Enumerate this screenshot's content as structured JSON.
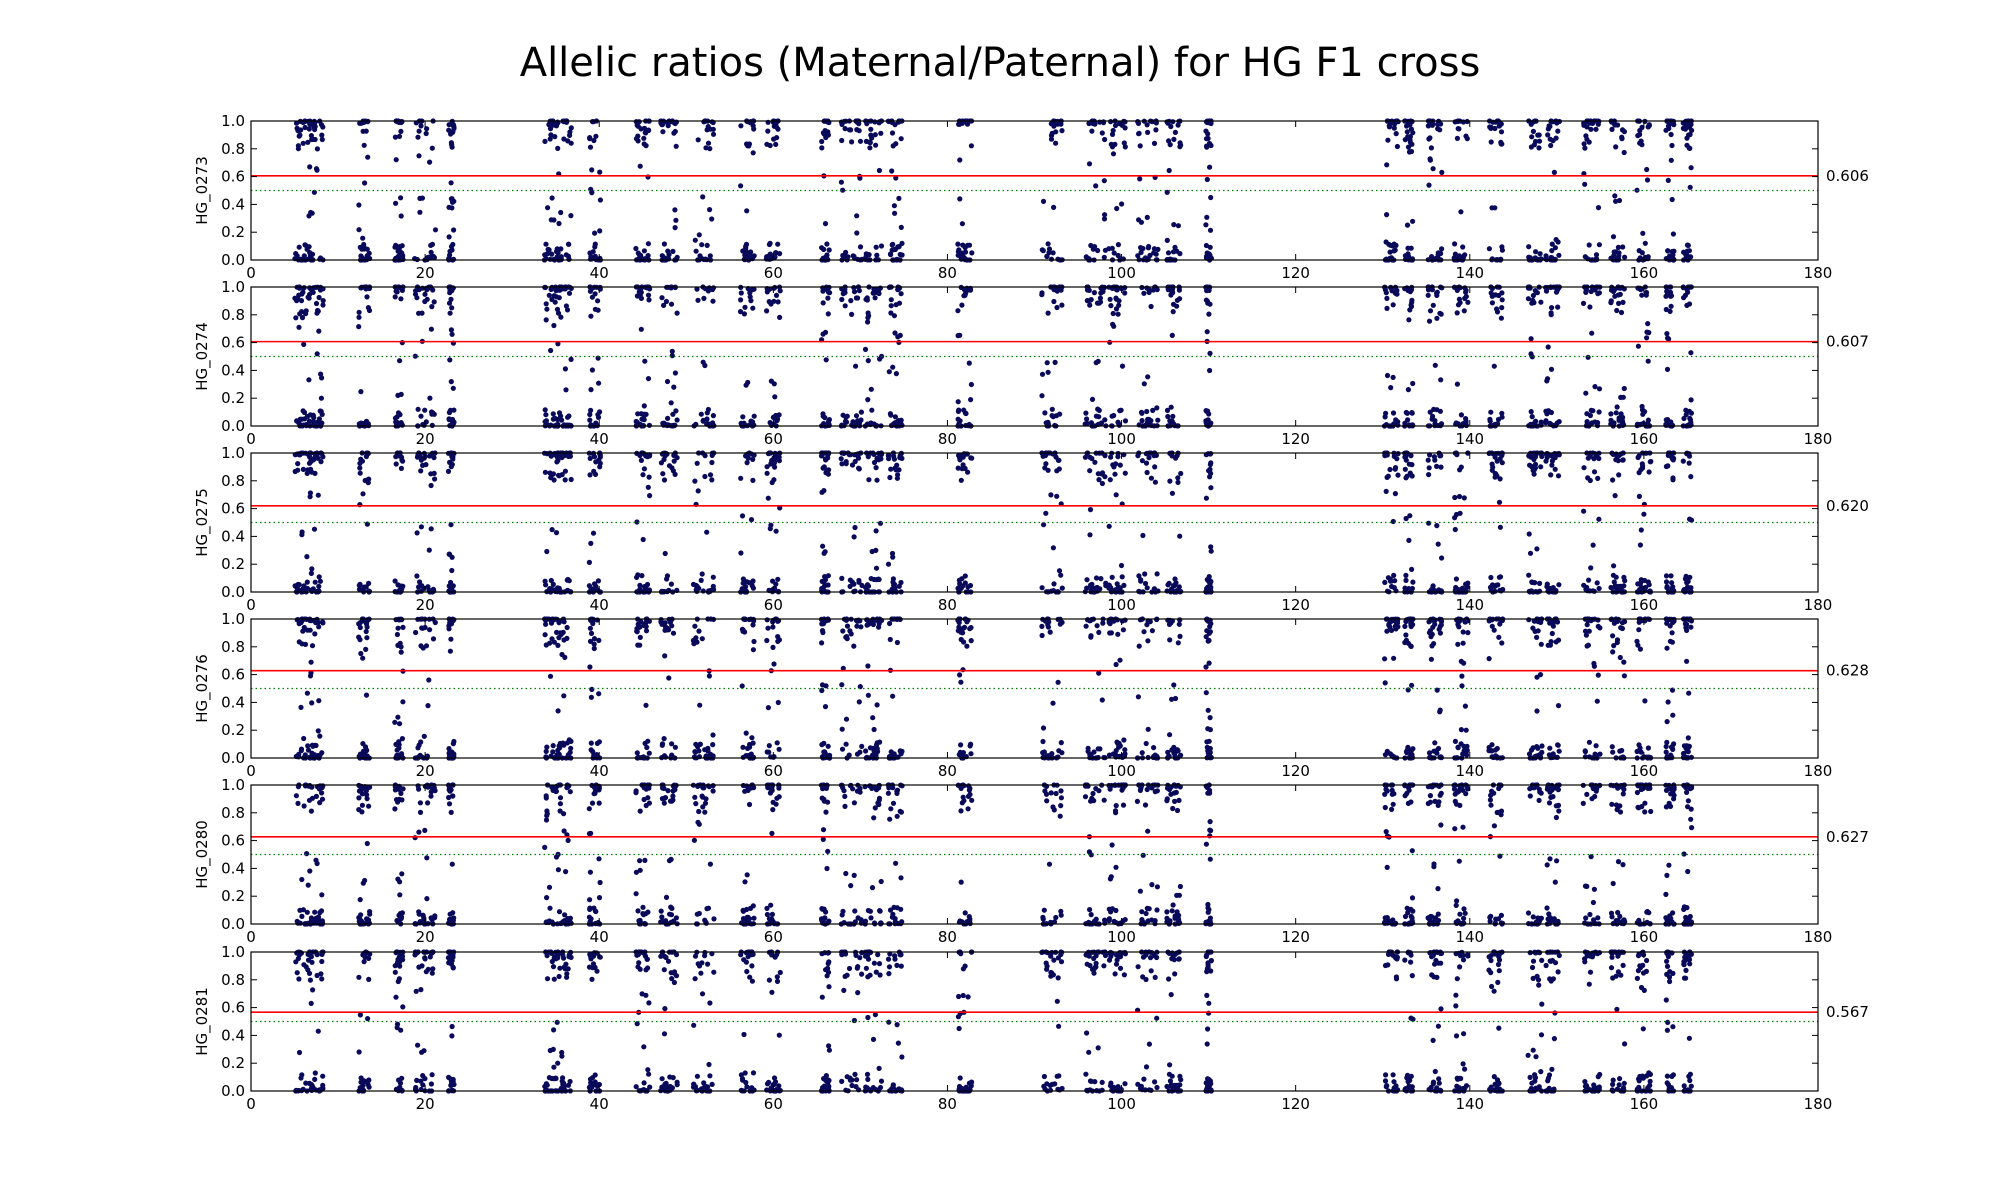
{
  "chart_data": {
    "type": "scatter",
    "title": "Allelic ratios (Maternal/Paternal) for HG F1 cross",
    "xlim": [
      0,
      180
    ],
    "ylim": [
      0.0,
      1.0
    ],
    "xticks": [
      "0",
      "20",
      "40",
      "60",
      "80",
      "100",
      "120",
      "140",
      "160",
      "180"
    ],
    "yticks": [
      "0.0",
      "0.2",
      "0.4",
      "0.6",
      "0.8",
      "1.0"
    ],
    "reference_line": 0.5,
    "colors": {
      "points": "#0a0a5a",
      "mean_line": "#ff0000",
      "reference_line": "#008000"
    },
    "grid": false,
    "clusters": [
      {
        "x": 6,
        "w": 1.2
      },
      {
        "x": 7.5,
        "w": 1.0
      },
      {
        "x": 13,
        "w": 0.8
      },
      {
        "x": 17,
        "w": 0.6
      },
      {
        "x": 20,
        "w": 1.5
      },
      {
        "x": 23,
        "w": 0.4
      },
      {
        "x": 34.5,
        "w": 1.0
      },
      {
        "x": 36,
        "w": 1.0
      },
      {
        "x": 39.5,
        "w": 0.8
      },
      {
        "x": 45,
        "w": 1.0
      },
      {
        "x": 48,
        "w": 1.2
      },
      {
        "x": 52,
        "w": 1.5
      },
      {
        "x": 57,
        "w": 1.0
      },
      {
        "x": 60,
        "w": 1.0
      },
      {
        "x": 66,
        "w": 0.6
      },
      {
        "x": 69,
        "w": 1.5
      },
      {
        "x": 71.5,
        "w": 1.2
      },
      {
        "x": 74,
        "w": 1.0
      },
      {
        "x": 82,
        "w": 1.0
      },
      {
        "x": 92,
        "w": 1.5
      },
      {
        "x": 97,
        "w": 1.5
      },
      {
        "x": 99.5,
        "w": 1.2
      },
      {
        "x": 103,
        "w": 1.5
      },
      {
        "x": 106,
        "w": 1.0
      },
      {
        "x": 110,
        "w": 0.4
      },
      {
        "x": 131,
        "w": 1.0
      },
      {
        "x": 133,
        "w": 0.6
      },
      {
        "x": 136,
        "w": 1.0
      },
      {
        "x": 139,
        "w": 1.0
      },
      {
        "x": 143,
        "w": 1.0
      },
      {
        "x": 147.5,
        "w": 1.0
      },
      {
        "x": 149.5,
        "w": 1.0
      },
      {
        "x": 154,
        "w": 1.2
      },
      {
        "x": 157,
        "w": 1.0
      },
      {
        "x": 160,
        "w": 1.0
      },
      {
        "x": 163,
        "w": 0.6
      },
      {
        "x": 165,
        "w": 0.6
      }
    ],
    "series": [
      {
        "name": "HG_0273",
        "mean": 0.606,
        "mean_label": "0.606"
      },
      {
        "name": "HG_0274",
        "mean": 0.607,
        "mean_label": "0.607"
      },
      {
        "name": "HG_0275",
        "mean": 0.62,
        "mean_label": "0.620"
      },
      {
        "name": "HG_0276",
        "mean": 0.628,
        "mean_label": "0.628"
      },
      {
        "name": "HG_0280",
        "mean": 0.627,
        "mean_label": "0.627"
      },
      {
        "name": "HG_0281",
        "mean": 0.567,
        "mean_label": "0.567"
      }
    ]
  }
}
